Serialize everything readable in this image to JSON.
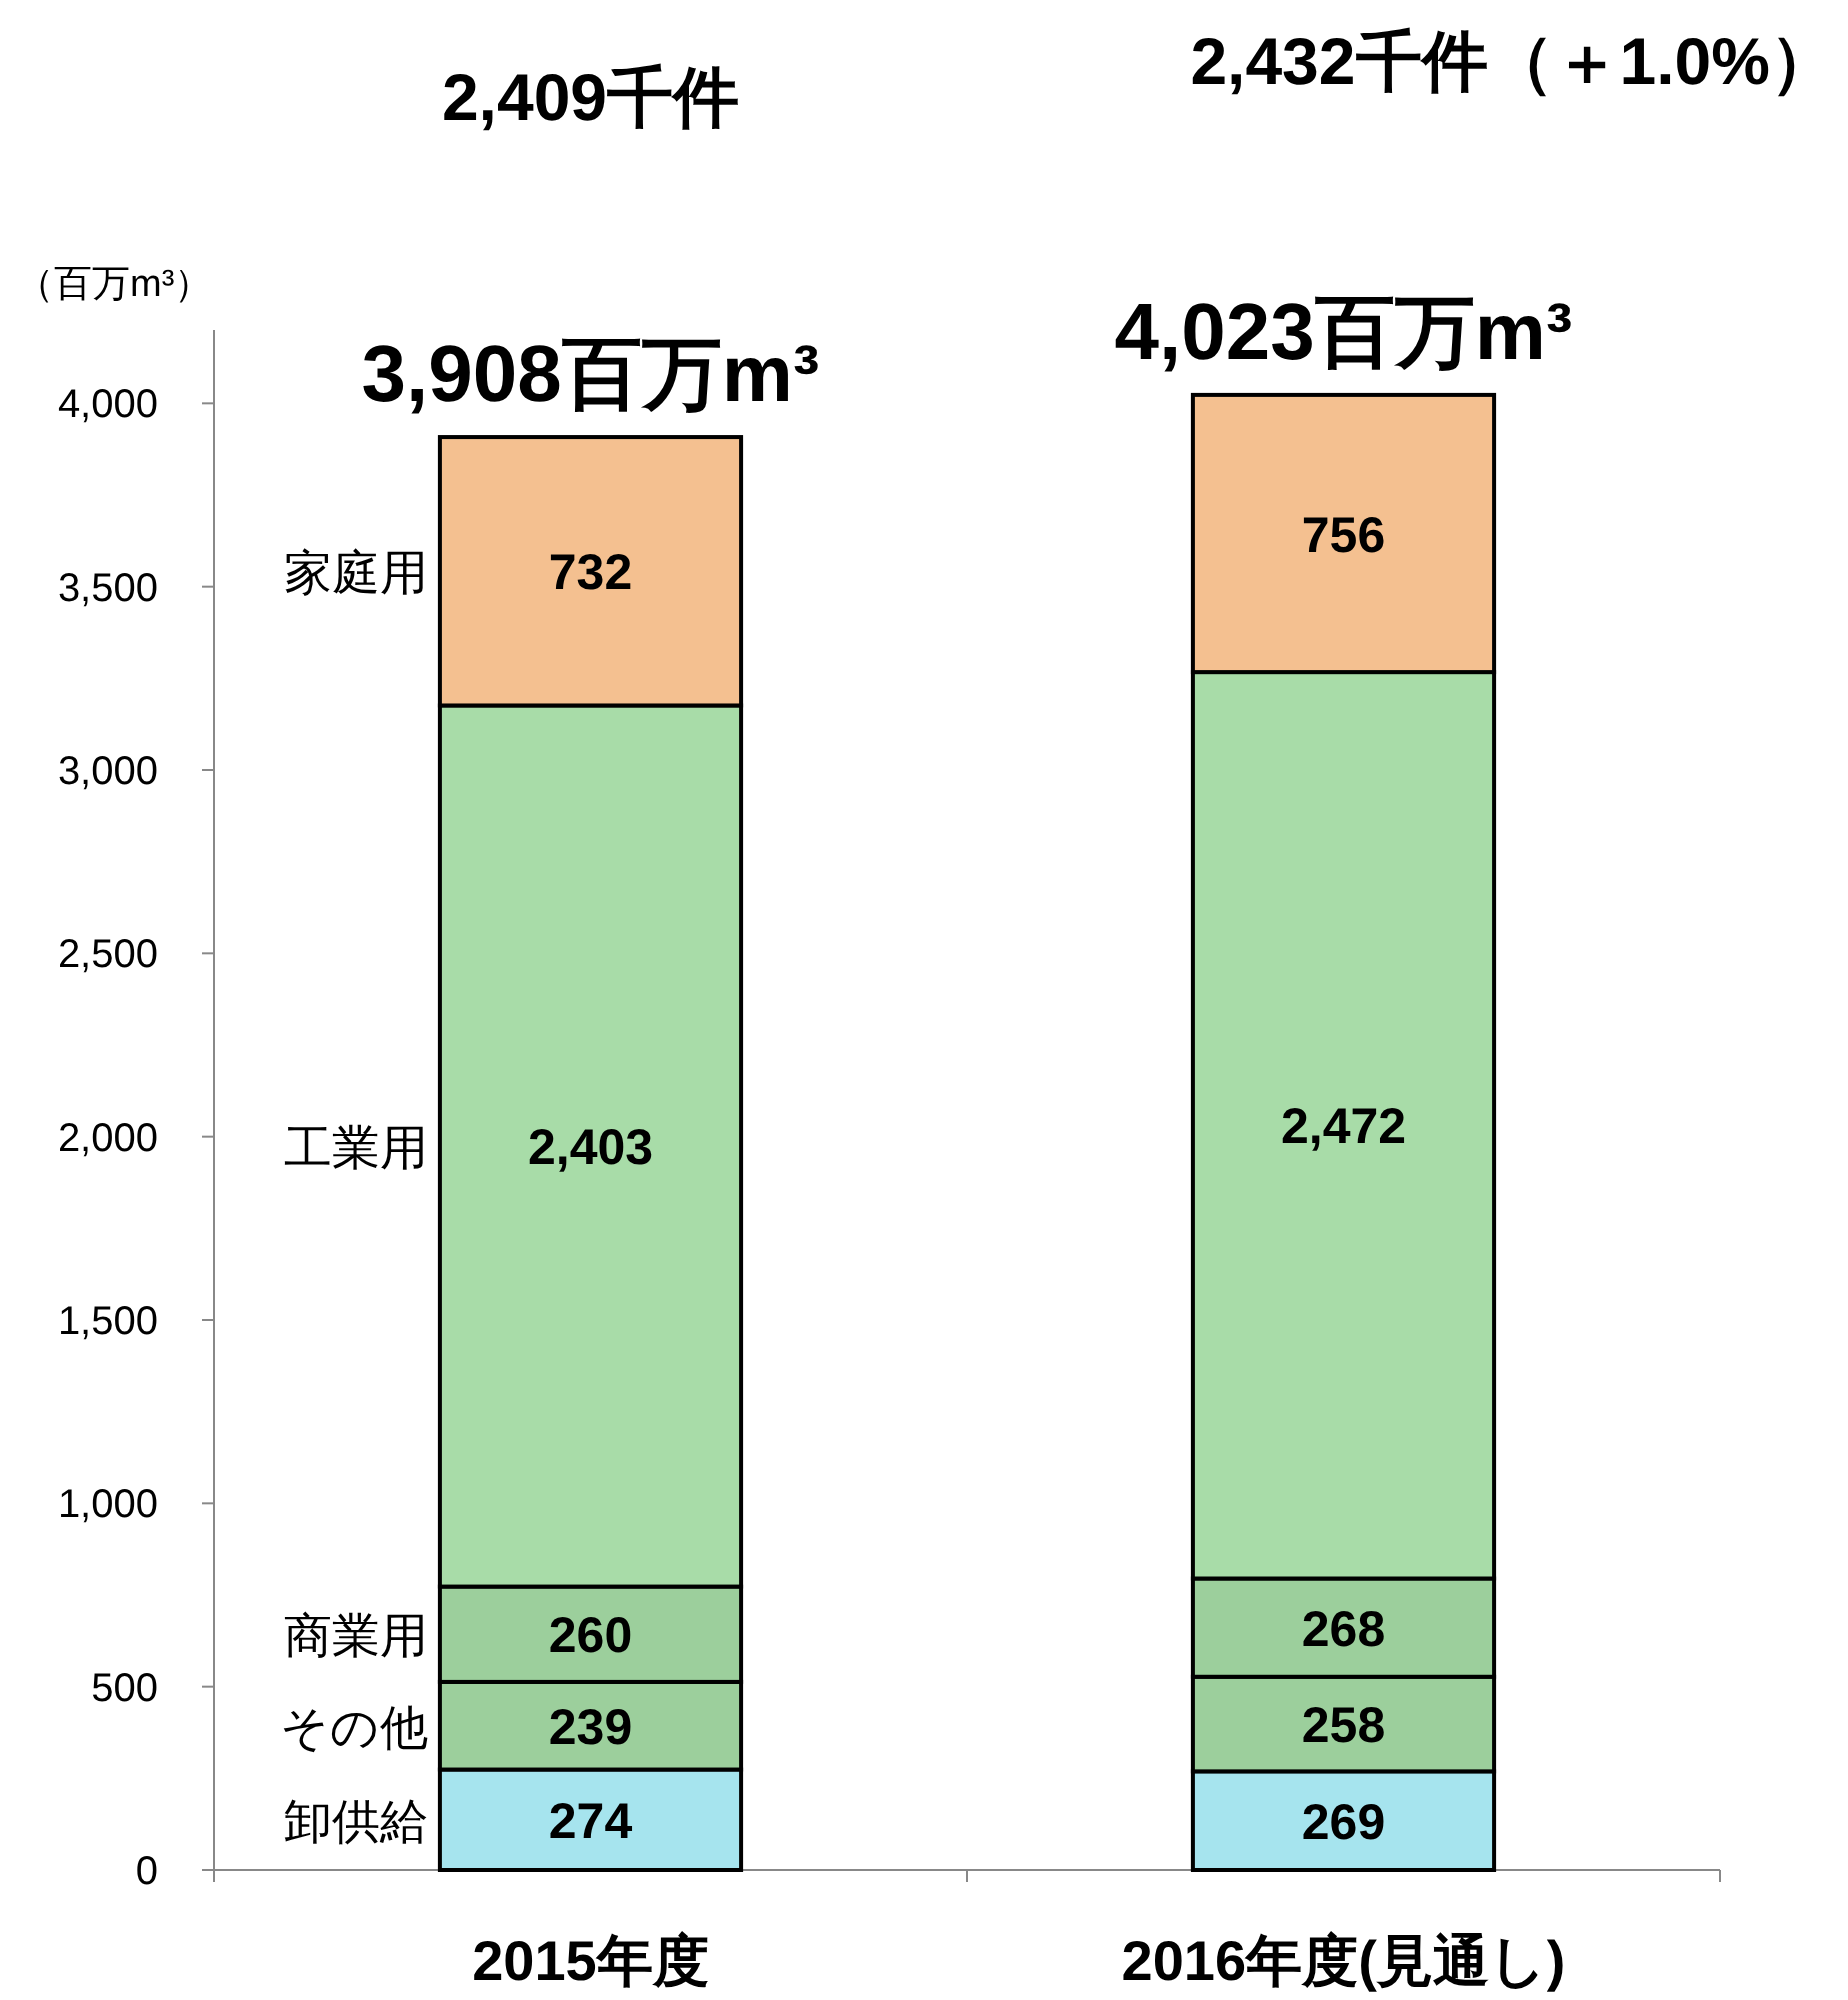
{
  "chart_data": {
    "type": "bar",
    "stacked": true,
    "categories": [
      "2015年度",
      "2016年度(見通し)"
    ],
    "ylabel": "（百万m³）",
    "ylim": [
      0,
      4200
    ],
    "yticks": [
      0,
      500,
      {
        "value": 1000,
        "label": "1,000"
      },
      {
        "value": 1500,
        "label": "1,500"
      },
      {
        "value": 2000,
        "label": "2,000"
      },
      {
        "value": 2500,
        "label": "2,500"
      },
      {
        "value": 3000,
        "label": "3,000"
      },
      {
        "value": 3500,
        "label": "3,500"
      },
      {
        "value": 4000,
        "label": "4,000"
      }
    ],
    "series": [
      {
        "name": "卸供給",
        "color": "#a6e4ee",
        "values": [
          274,
          269
        ],
        "value_labels": [
          "274",
          "269"
        ]
      },
      {
        "name": "その他",
        "color": "#9ccf9c",
        "values": [
          239,
          258
        ],
        "value_labels": [
          "239",
          "258"
        ]
      },
      {
        "name": "商業用",
        "color": "#9ccf9c",
        "values": [
          260,
          268
        ],
        "value_labels": [
          "260",
          "268"
        ]
      },
      {
        "name": "工業用",
        "color": "#a8dca8",
        "values": [
          2403,
          2472
        ],
        "value_labels": [
          "2,403",
          "2,472"
        ]
      },
      {
        "name": "家庭用",
        "color": "#f4c090",
        "values": [
          732,
          756
        ],
        "value_labels": [
          "732",
          "756"
        ]
      }
    ],
    "totals": [
      "3,908百万m³",
      "4,023百万m³"
    ],
    "annotations": [
      "2,409千件",
      "2,432千件（＋1.0%）"
    ]
  }
}
